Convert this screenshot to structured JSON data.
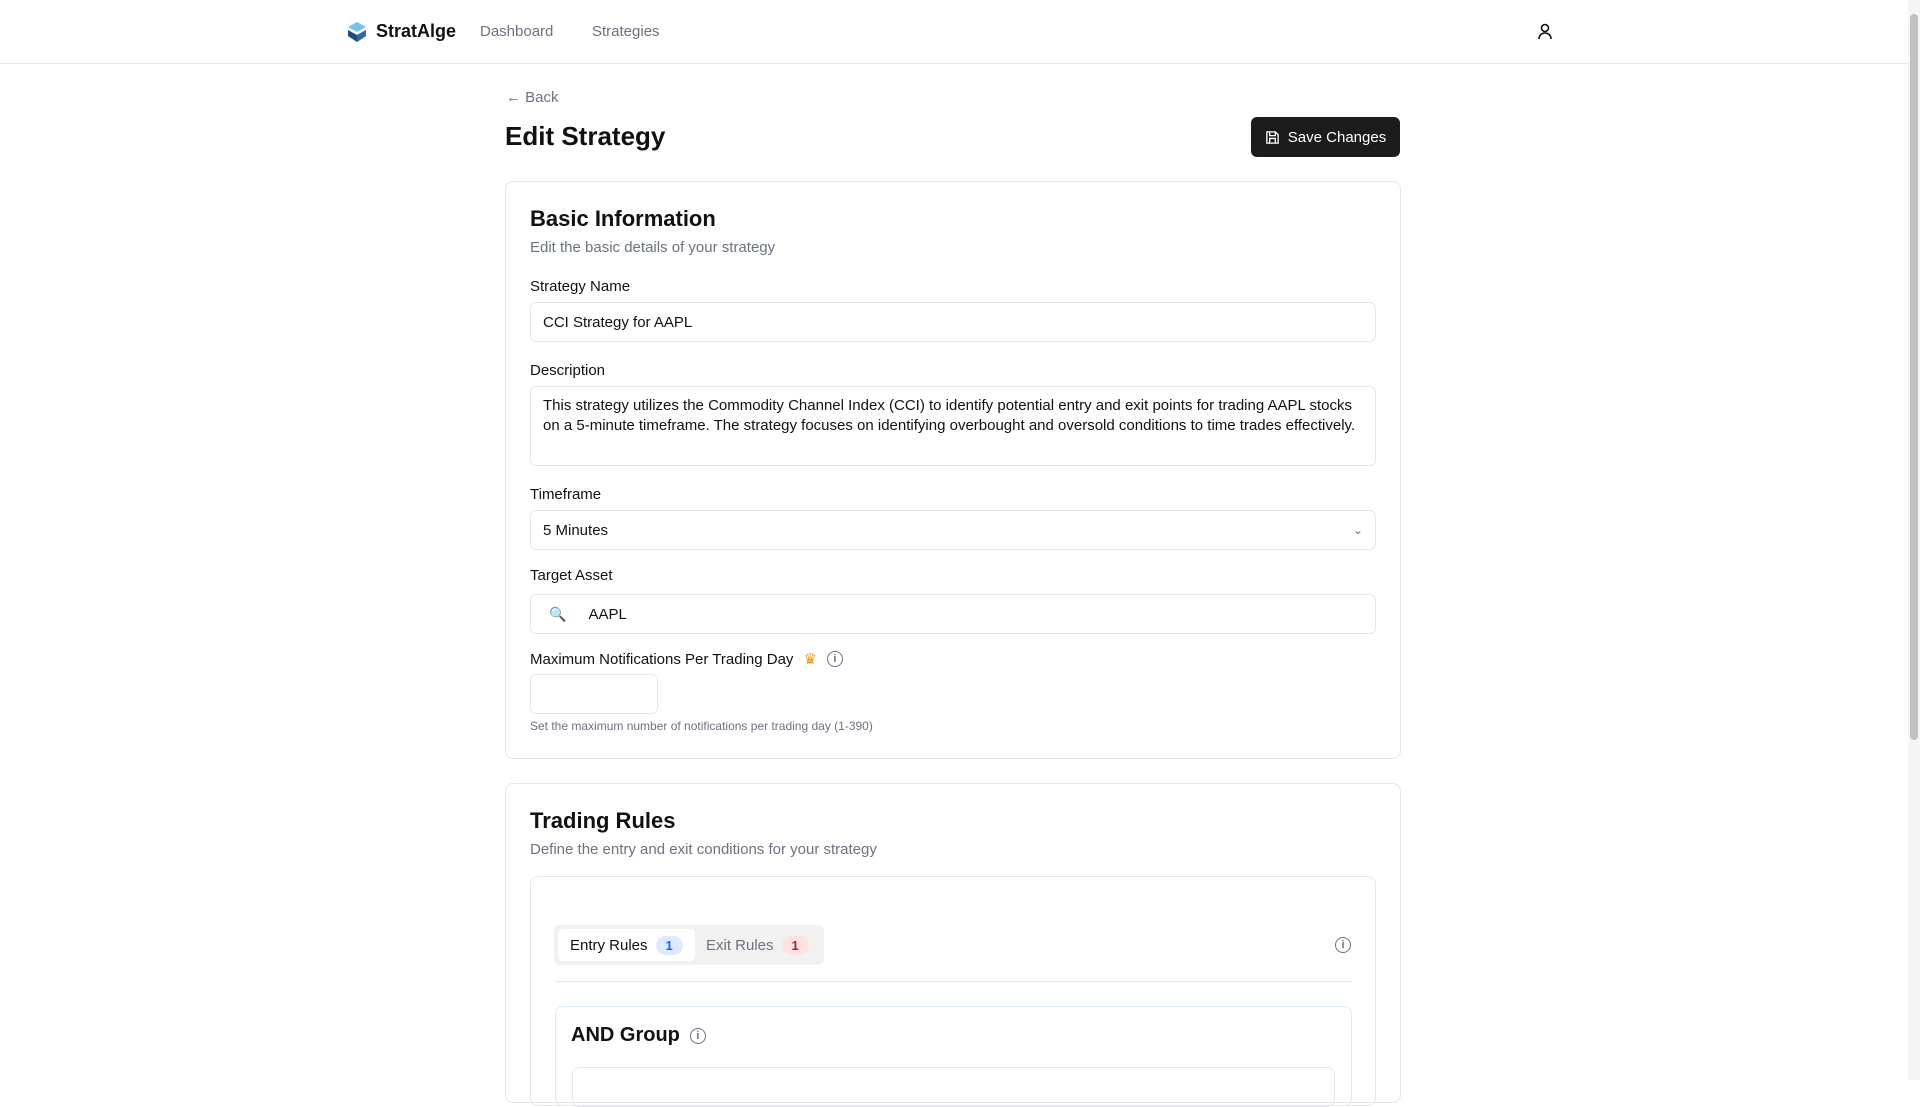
{
  "header": {
    "brand": "StratAlge",
    "nav": [
      "Dashboard",
      "Strategies"
    ]
  },
  "page": {
    "back": "Back",
    "title": "Edit Strategy",
    "save_label": "Save Changes"
  },
  "basic": {
    "title": "Basic Information",
    "subtitle": "Edit the basic details of your strategy",
    "name_label": "Strategy Name",
    "name_value": "CCI Strategy for AAPL",
    "desc_label": "Description",
    "desc_value": "This strategy utilizes the Commodity Channel Index (CCI) to identify potential entry and exit points for trading AAPL stocks on a 5-minute timeframe. The strategy focuses on identifying overbought and oversold conditions to time trades effectively.",
    "timeframe_label": "Timeframe",
    "timeframe_value": "5 Minutes",
    "asset_label": "Target Asset",
    "asset_value": "AAPL",
    "max_label": "Maximum Notifications Per Trading Day",
    "max_value": "",
    "max_help": "Set the maximum number of notifications per trading day (1-390)"
  },
  "rules": {
    "title": "Trading Rules",
    "subtitle": "Define the entry and exit conditions for your strategy",
    "tabs": [
      {
        "label": "Entry Rules",
        "count": "1",
        "active": true
      },
      {
        "label": "Exit Rules",
        "count": "1",
        "active": false
      }
    ],
    "group_title": "AND Group"
  },
  "colors": {
    "entry_badge": "#dbeafe",
    "exit_badge": "#fee2e2",
    "crown": "#e69a1f",
    "button": "#1c1c1c"
  }
}
